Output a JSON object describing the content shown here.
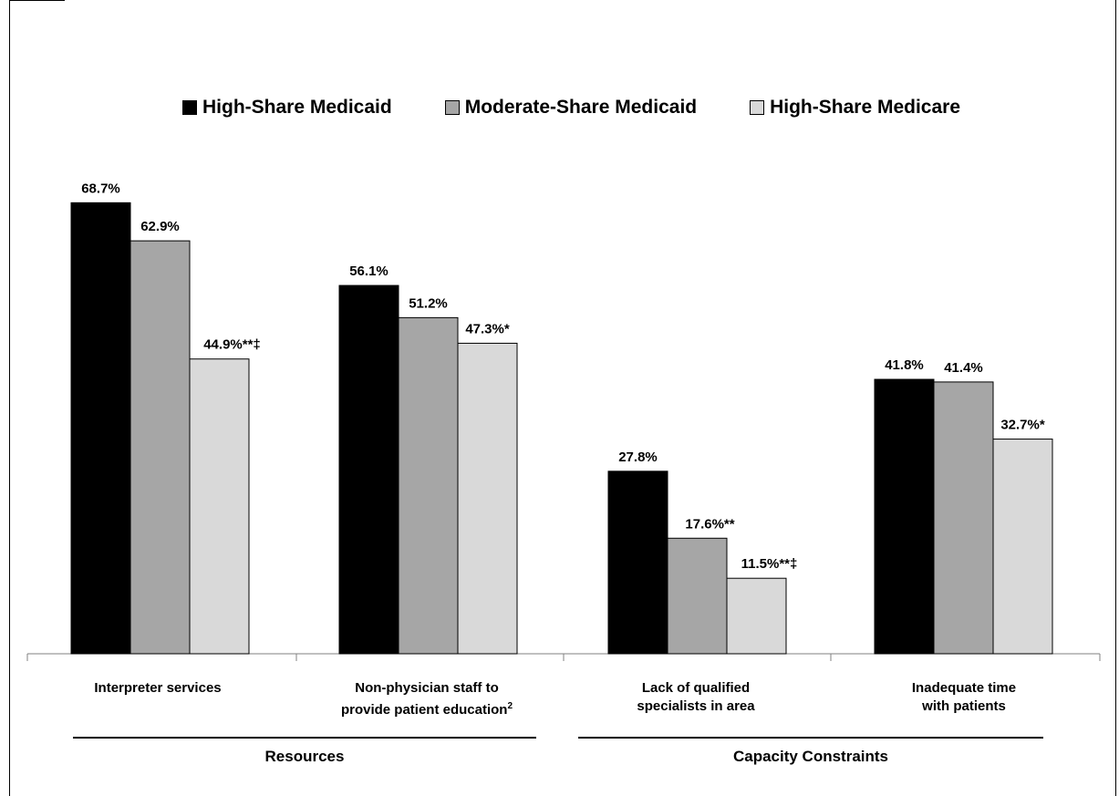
{
  "chart_data": {
    "type": "bar",
    "categories": [
      "Interpreter services",
      "Non-physician staff to provide patient education",
      "Lack of qualified specialists in area",
      "Inadequate time with patients"
    ],
    "category_superscripts": [
      "",
      "2",
      "",
      ""
    ],
    "category_groups": [
      {
        "label": "Resources",
        "categories": [
          0,
          1
        ]
      },
      {
        "label": "Capacity Constraints",
        "categories": [
          2,
          3
        ]
      }
    ],
    "series": [
      {
        "name": "High-Share Medicaid",
        "color": "#000000",
        "values": [
          68.7,
          56.1,
          27.8,
          41.8
        ],
        "labels": [
          "68.7%",
          "56.1%",
          "27.8%",
          "41.8%"
        ]
      },
      {
        "name": "Moderate-Share Medicaid",
        "color": "#a6a6a6",
        "values": [
          62.9,
          51.2,
          17.6,
          41.4
        ],
        "labels": [
          "62.9%",
          "51.2%",
          "17.6%**",
          "41.4%"
        ]
      },
      {
        "name": "High-Share Medicare",
        "color": "#d9d9d9",
        "values": [
          44.9,
          47.3,
          11.5,
          32.7
        ],
        "labels": [
          "44.9%**‡",
          "47.3%*",
          "11.5%**‡",
          "32.7%*"
        ]
      }
    ],
    "ylim": [
      0,
      100
    ],
    "legend_position": "top",
    "grid": false
  }
}
